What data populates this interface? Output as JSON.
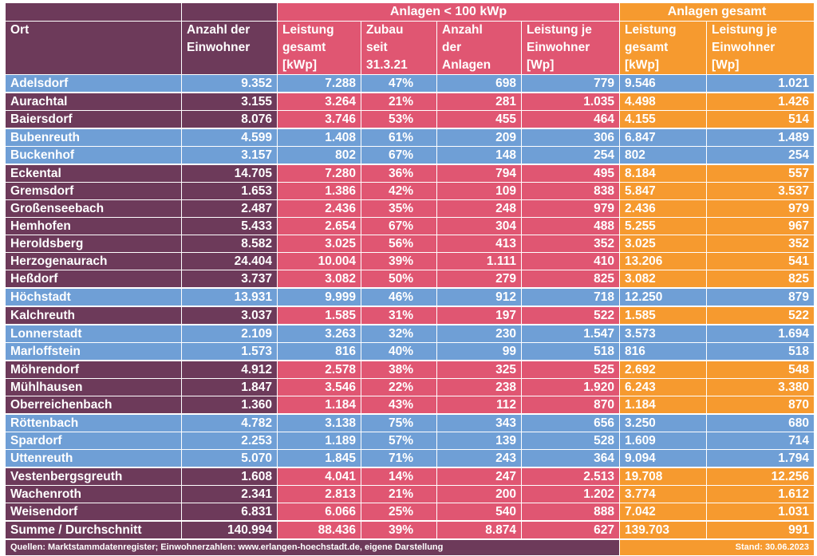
{
  "group_headers": {
    "small": "Anlagen < 100 kWp",
    "total": "Anlagen gesamt"
  },
  "columns": {
    "ort": "Ort",
    "einwohner": [
      "Anzahl der",
      "Einwohner"
    ],
    "leistung_gesamt": [
      "Leistung",
      "gesamt",
      "[kWp]"
    ],
    "zubau": [
      "Zubau",
      "seit",
      "31.3.21"
    ],
    "anzahl_anlagen": [
      "Anzahl",
      "der",
      "Anlagen"
    ],
    "leistung_je_einwohner": [
      "Leistung je",
      "Einwohner",
      "[Wp]"
    ],
    "gesamt_leistung": [
      "Leistung",
      "gesamt",
      "[kWp]"
    ],
    "gesamt_je_einwohner": [
      "Leistung je",
      "Einwohner",
      "[Wp]"
    ]
  },
  "rows": [
    {
      "ort": "Adelsdorf",
      "einwohner": "9.352",
      "leistung": "7.288",
      "zubau": "47%",
      "anzahl": "698",
      "je_ew": "779",
      "ges_leistung": "9.546",
      "ges_je_ew": "1.021",
      "style": "blue"
    },
    {
      "ort": "Aurachtal",
      "einwohner": "3.155",
      "leistung": "3.264",
      "zubau": "21%",
      "anzahl": "281",
      "je_ew": "1.035",
      "ges_leistung": "4.498",
      "ges_je_ew": "1.426",
      "style": "color"
    },
    {
      "ort": "Baiersdorf",
      "einwohner": "8.076",
      "leistung": "3.746",
      "zubau": "53%",
      "anzahl": "455",
      "je_ew": "464",
      "ges_leistung": "4.155",
      "ges_je_ew": "514",
      "style": "color"
    },
    {
      "ort": "Bubenreuth",
      "einwohner": "4.599",
      "leistung": "1.408",
      "zubau": "61%",
      "anzahl": "209",
      "je_ew": "306",
      "ges_leistung": "6.847",
      "ges_je_ew": "1.489",
      "style": "blue"
    },
    {
      "ort": "Buckenhof",
      "einwohner": "3.157",
      "leistung": "802",
      "zubau": "67%",
      "anzahl": "148",
      "je_ew": "254",
      "ges_leistung": "802",
      "ges_je_ew": "254",
      "style": "blue"
    },
    {
      "ort": "Eckental",
      "einwohner": "14.705",
      "leistung": "7.280",
      "zubau": "36%",
      "anzahl": "794",
      "je_ew": "495",
      "ges_leistung": "8.184",
      "ges_je_ew": "557",
      "style": "color"
    },
    {
      "ort": "Gremsdorf",
      "einwohner": "1.653",
      "leistung": "1.386",
      "zubau": "42%",
      "anzahl": "109",
      "je_ew": "838",
      "ges_leistung": "5.847",
      "ges_je_ew": "3.537",
      "style": "color"
    },
    {
      "ort": "Großenseebach",
      "einwohner": "2.487",
      "leistung": "2.436",
      "zubau": "35%",
      "anzahl": "248",
      "je_ew": "979",
      "ges_leistung": "2.436",
      "ges_je_ew": "979",
      "style": "color"
    },
    {
      "ort": "Hemhofen",
      "einwohner": "5.433",
      "leistung": "2.654",
      "zubau": "67%",
      "anzahl": "304",
      "je_ew": "488",
      "ges_leistung": "5.255",
      "ges_je_ew": "967",
      "style": "color"
    },
    {
      "ort": "Heroldsberg",
      "einwohner": "8.582",
      "leistung": "3.025",
      "zubau": "56%",
      "anzahl": "413",
      "je_ew": "352",
      "ges_leistung": "3.025",
      "ges_je_ew": "352",
      "style": "color"
    },
    {
      "ort": "Herzogenaurach",
      "einwohner": "24.404",
      "leistung": "10.004",
      "zubau": "39%",
      "anzahl": "1.111",
      "je_ew": "410",
      "ges_leistung": "13.206",
      "ges_je_ew": "541",
      "style": "color"
    },
    {
      "ort": "Heßdorf",
      "einwohner": "3.737",
      "leistung": "3.082",
      "zubau": "50%",
      "anzahl": "279",
      "je_ew": "825",
      "ges_leistung": "3.082",
      "ges_je_ew": "825",
      "style": "color"
    },
    {
      "ort": "Höchstadt",
      "einwohner": "13.931",
      "leistung": "9.999",
      "zubau": "46%",
      "anzahl": "912",
      "je_ew": "718",
      "ges_leistung": "12.250",
      "ges_je_ew": "879",
      "style": "blue"
    },
    {
      "ort": "Kalchreuth",
      "einwohner": "3.037",
      "leistung": "1.585",
      "zubau": "31%",
      "anzahl": "197",
      "je_ew": "522",
      "ges_leistung": "1.585",
      "ges_je_ew": "522",
      "style": "color"
    },
    {
      "ort": "Lonnerstadt",
      "einwohner": "2.109",
      "leistung": "3.263",
      "zubau": "32%",
      "anzahl": "230",
      "je_ew": "1.547",
      "ges_leistung": "3.573",
      "ges_je_ew": "1.694",
      "style": "blue"
    },
    {
      "ort": "Marloffstein",
      "einwohner": "1.573",
      "leistung": "816",
      "zubau": "40%",
      "anzahl": "99",
      "je_ew": "518",
      "ges_leistung": "816",
      "ges_je_ew": "518",
      "style": "blue"
    },
    {
      "ort": "Möhrendorf",
      "einwohner": "4.912",
      "leistung": "2.578",
      "zubau": "38%",
      "anzahl": "325",
      "je_ew": "525",
      "ges_leistung": "2.692",
      "ges_je_ew": "548",
      "style": "color"
    },
    {
      "ort": "Mühlhausen",
      "einwohner": "1.847",
      "leistung": "3.546",
      "zubau": "22%",
      "anzahl": "238",
      "je_ew": "1.920",
      "ges_leistung": "6.243",
      "ges_je_ew": "3.380",
      "style": "color"
    },
    {
      "ort": "Oberreichenbach",
      "einwohner": "1.360",
      "leistung": "1.184",
      "zubau": "43%",
      "anzahl": "112",
      "je_ew": "870",
      "ges_leistung": "1.184",
      "ges_je_ew": "870",
      "style": "color"
    },
    {
      "ort": "Röttenbach",
      "einwohner": "4.782",
      "leistung": "3.138",
      "zubau": "75%",
      "anzahl": "343",
      "je_ew": "656",
      "ges_leistung": "3.250",
      "ges_je_ew": "680",
      "style": "blue"
    },
    {
      "ort": "Spardorf",
      "einwohner": "2.253",
      "leistung": "1.189",
      "zubau": "57%",
      "anzahl": "139",
      "je_ew": "528",
      "ges_leistung": "1.609",
      "ges_je_ew": "714",
      "style": "blue"
    },
    {
      "ort": "Uttenreuth",
      "einwohner": "5.070",
      "leistung": "1.845",
      "zubau": "71%",
      "anzahl": "243",
      "je_ew": "364",
      "ges_leistung": "9.094",
      "ges_je_ew": "1.794",
      "style": "blue"
    },
    {
      "ort": "Vestenbergsgreuth",
      "einwohner": "1.608",
      "leistung": "4.041",
      "zubau": "14%",
      "anzahl": "247",
      "je_ew": "2.513",
      "ges_leistung": "19.708",
      "ges_je_ew": "12.256",
      "style": "color"
    },
    {
      "ort": "Wachenroth",
      "einwohner": "2.341",
      "leistung": "2.813",
      "zubau": "21%",
      "anzahl": "200",
      "je_ew": "1.202",
      "ges_leistung": "3.774",
      "ges_je_ew": "1.612",
      "style": "color"
    },
    {
      "ort": "Weisendorf",
      "einwohner": "6.831",
      "leistung": "6.066",
      "zubau": "25%",
      "anzahl": "540",
      "je_ew": "888",
      "ges_leistung": "7.042",
      "ges_je_ew": "1.031",
      "style": "color"
    }
  ],
  "summary": {
    "ort": "Summe / Durchschnitt",
    "einwohner": "140.994",
    "leistung": "88.436",
    "zubau": "39%",
    "anzahl": "8.874",
    "je_ew": "627",
    "ges_leistung": "139.703",
    "ges_je_ew": "991"
  },
  "footer": {
    "source": "Quellen: Marktstammdatenregister; Einwohnerzahlen: www.erlangen-hoechstadt.de, eigene Darstellung",
    "date": "Stand: 30.06.2023"
  },
  "colors": {
    "purple": "#6d3a5a",
    "red": "#e05672",
    "orange": "#f69a2f",
    "blue": "#6f9fd6"
  }
}
